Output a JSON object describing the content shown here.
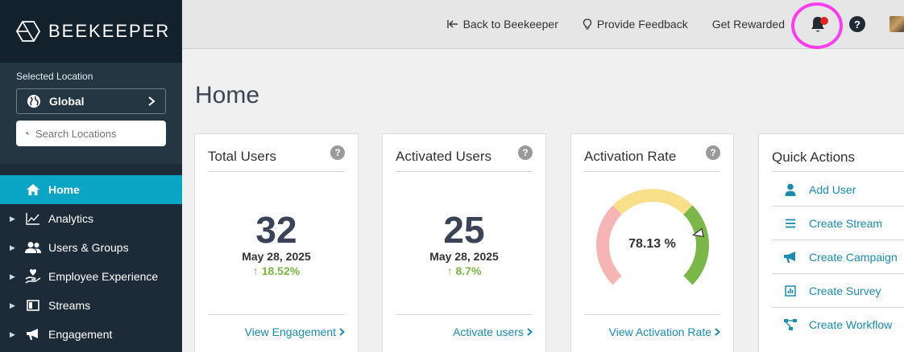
{
  "app": {
    "logo_text": "BEEKEEPER"
  },
  "location": {
    "label": "Selected Location",
    "selected": "Global",
    "search_placeholder": "Search Locations"
  },
  "nav": [
    {
      "label": "Home",
      "icon": "home-icon",
      "active": true
    },
    {
      "label": "Analytics",
      "icon": "analytics-icon"
    },
    {
      "label": "Users & Groups",
      "icon": "users-icon"
    },
    {
      "label": "Employee Experience",
      "icon": "hand-heart-icon"
    },
    {
      "label": "Streams",
      "icon": "streams-icon"
    },
    {
      "label": "Engagement",
      "icon": "megaphone-icon"
    }
  ],
  "header": {
    "back_label": "Back to Beekeeper",
    "feedback_label": "Provide Feedback",
    "rewards_label": "Get Rewarded",
    "help_label": "?"
  },
  "page": {
    "title": "Home"
  },
  "cards": {
    "total_users": {
      "title": "Total Users",
      "value": "32",
      "date": "May 28, 2025",
      "delta": "18.52%",
      "link": "View Engagement"
    },
    "activated_users": {
      "title": "Activated Users",
      "value": "25",
      "date": "May 28, 2025",
      "delta": "8.7%",
      "link": "Activate users"
    },
    "activation_rate": {
      "title": "Activation Rate",
      "value_label": "78.13 %",
      "value_percent": 78.13,
      "link": "View Activation Rate"
    }
  },
  "quick_actions": {
    "title": "Quick Actions",
    "items": [
      {
        "label": "Add User",
        "icon": "user-icon"
      },
      {
        "label": "Create Stream",
        "icon": "list-icon"
      },
      {
        "label": "Create Campaign",
        "icon": "megaphone-icon"
      },
      {
        "label": "Create Survey",
        "icon": "survey-icon"
      },
      {
        "label": "Create Workflow",
        "icon": "workflow-icon"
      }
    ]
  },
  "colors": {
    "accent": "#0aa5c5",
    "link": "#1b8bb0",
    "positive": "#7ab648",
    "gauge_red": "#f5b5b5",
    "gauge_yellow": "#f8df8a",
    "gauge_green": "#7ab648"
  }
}
